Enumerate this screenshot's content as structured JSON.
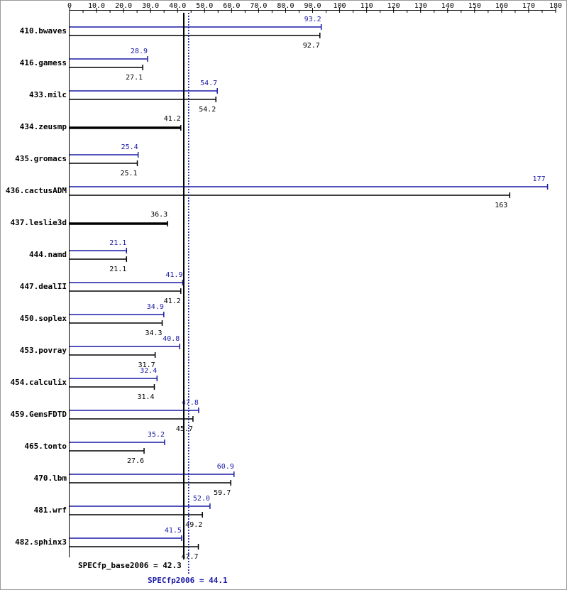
{
  "chart_data": {
    "type": "bar",
    "orientation": "horizontal",
    "title": "",
    "xlabel": "",
    "ylabel": "",
    "xlim": [
      0,
      180
    ],
    "ticks": [
      "0",
      "10.0",
      "20.0",
      "30.0",
      "40.0",
      "50.0",
      "60.0",
      "70.0",
      "80.0",
      "90.0",
      "100",
      "110",
      "120",
      "130",
      "140",
      "150",
      "160",
      "170",
      "180"
    ],
    "tick_values": [
      0,
      10,
      20,
      30,
      40,
      50,
      60,
      70,
      80,
      90,
      100,
      110,
      120,
      130,
      140,
      150,
      160,
      170,
      180
    ],
    "categories": [
      "410.bwaves",
      "416.gamess",
      "433.milc",
      "434.zeusmp",
      "435.gromacs",
      "436.cactusADM",
      "437.leslie3d",
      "444.namd",
      "447.dealII",
      "450.soplex",
      "453.povray",
      "454.calculix",
      "459.GemsFDTD",
      "465.tonto",
      "470.lbm",
      "481.wrf",
      "482.sphinx3"
    ],
    "series": [
      {
        "key": "peak",
        "color": "#1a1aa6",
        "values": [
          93.2,
          28.9,
          54.7,
          null,
          25.4,
          177,
          null,
          21.1,
          41.9,
          34.9,
          40.8,
          32.4,
          47.8,
          35.2,
          60.9,
          52.0,
          41.5
        ],
        "labels": [
          "93.2",
          "28.9",
          "54.7",
          "",
          "25.4",
          "177",
          "",
          "21.1",
          "41.9",
          "34.9",
          "40.8",
          "32.4",
          "47.8",
          "35.2",
          "60.9",
          "52.0",
          "41.5"
        ]
      },
      {
        "key": "base",
        "color": "#000000",
        "values": [
          92.7,
          27.1,
          54.2,
          41.2,
          25.1,
          163,
          36.3,
          21.1,
          41.2,
          34.3,
          31.7,
          31.4,
          45.7,
          27.6,
          59.7,
          49.2,
          47.7
        ],
        "labels": [
          "92.7",
          "27.1",
          "54.2",
          "41.2",
          "25.1",
          "163",
          "36.3",
          "21.1",
          "41.2",
          "34.3",
          "31.7",
          "31.4",
          "45.7",
          "27.6",
          "59.7",
          "49.2",
          "47.7"
        ]
      }
    ],
    "reference_lines": [
      {
        "key": "base",
        "label": "SPECfp_base2006 = 42.3",
        "value": 42.3,
        "color": "#000000",
        "style": "solid"
      },
      {
        "key": "peak",
        "label": "SPECfp2006 = 44.1",
        "value": 44.1,
        "color": "#1a1aa6",
        "style": "dotted"
      }
    ],
    "grid": false,
    "legend": "none"
  }
}
